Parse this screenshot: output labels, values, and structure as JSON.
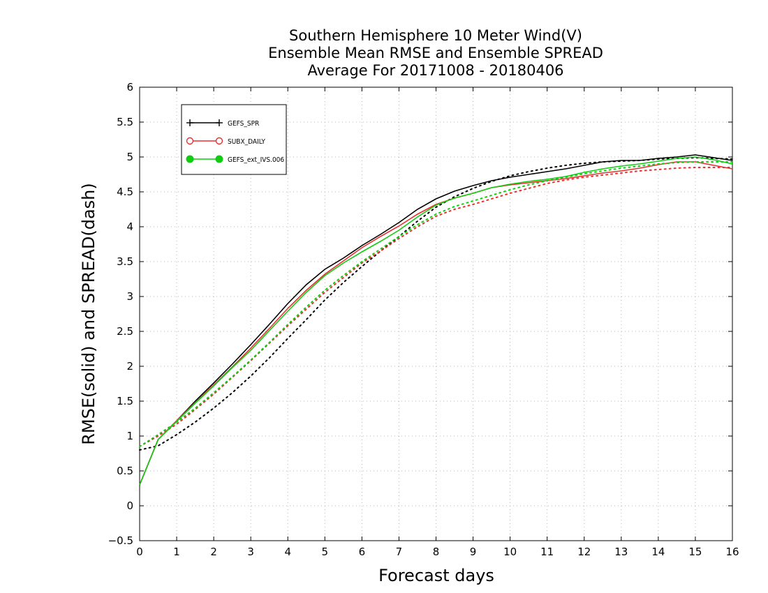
{
  "chart_data": {
    "type": "line",
    "title": [
      "Southern Hemisphere 10 Meter Wind(V)",
      "Ensemble Mean RMSE and Ensemble SPREAD",
      "Average For 20171008 - 20180406"
    ],
    "xlabel": "Forecast days",
    "ylabel": "RMSE(solid) and SPREAD(dash)",
    "xlim": [
      0,
      16
    ],
    "ylim": [
      -0.5,
      6
    ],
    "xticks": [
      0,
      1,
      2,
      3,
      4,
      5,
      6,
      7,
      8,
      9,
      10,
      11,
      12,
      13,
      14,
      15,
      16
    ],
    "yticks": [
      -0.5,
      0,
      0.5,
      1,
      1.5,
      2,
      2.5,
      3,
      3.5,
      4,
      4.5,
      5,
      5.5,
      6
    ],
    "ytick_labels": [
      "−0.5",
      "0",
      "0.5",
      "1",
      "1.5",
      "2",
      "2.5",
      "3",
      "3.5",
      "4",
      "4.5",
      "5",
      "5.5",
      "6"
    ],
    "grid": true,
    "legend_position": "top-left",
    "x": [
      0,
      0.5,
      1,
      1.5,
      2,
      2.5,
      3,
      3.5,
      4,
      4.5,
      5,
      5.5,
      6,
      6.5,
      7,
      7.5,
      8,
      8.5,
      9,
      9.5,
      10,
      10.5,
      11,
      11.5,
      12,
      12.5,
      13,
      13.5,
      14,
      14.5,
      15,
      15.5,
      16
    ],
    "series": [
      {
        "name": "GEFS_SPR",
        "color": "#000000",
        "marker": "plus",
        "rmse": [
          0.3,
          0.95,
          1.22,
          1.5,
          1.76,
          2.03,
          2.31,
          2.6,
          2.9,
          3.17,
          3.39,
          3.55,
          3.73,
          3.89,
          4.06,
          4.25,
          4.4,
          4.51,
          4.59,
          4.66,
          4.71,
          4.75,
          4.79,
          4.83,
          4.88,
          4.93,
          4.95,
          4.95,
          4.98,
          5.0,
          5.03,
          4.99,
          4.95
        ],
        "spread": [
          0.8,
          0.86,
          1.02,
          1.2,
          1.4,
          1.62,
          1.86,
          2.12,
          2.4,
          2.67,
          2.95,
          3.2,
          3.43,
          3.65,
          3.86,
          4.08,
          4.28,
          4.43,
          4.55,
          4.65,
          4.73,
          4.79,
          4.84,
          4.88,
          4.91,
          4.93,
          4.94,
          4.95,
          4.97,
          4.98,
          4.99,
          4.98,
          4.97
        ]
      },
      {
        "name": "SUBX_DAILY",
        "color": "#e83030",
        "marker": "open-circle",
        "rmse": [
          0.3,
          0.95,
          1.22,
          1.48,
          1.73,
          1.99,
          2.26,
          2.54,
          2.83,
          3.09,
          3.32,
          3.51,
          3.7,
          3.86,
          4.01,
          4.18,
          4.32,
          4.41,
          4.48,
          4.56,
          4.6,
          4.63,
          4.66,
          4.69,
          4.73,
          4.77,
          4.8,
          4.84,
          4.89,
          4.93,
          4.93,
          4.88,
          4.83
        ],
        "spread": [
          0.85,
          1.0,
          1.17,
          1.38,
          1.6,
          1.84,
          2.08,
          2.33,
          2.58,
          2.82,
          3.06,
          3.27,
          3.48,
          3.65,
          3.83,
          4.0,
          4.15,
          4.25,
          4.32,
          4.4,
          4.48,
          4.55,
          4.62,
          4.67,
          4.71,
          4.74,
          4.77,
          4.8,
          4.82,
          4.84,
          4.85,
          4.85,
          4.85
        ]
      },
      {
        "name": "GEFS_ext_IVS.006",
        "color": "#11cc11",
        "marker": "filled-circle",
        "rmse": [
          0.3,
          0.95,
          1.21,
          1.47,
          1.72,
          1.98,
          2.23,
          2.51,
          2.79,
          3.06,
          3.3,
          3.48,
          3.64,
          3.79,
          3.95,
          4.14,
          4.31,
          4.41,
          4.48,
          4.56,
          4.61,
          4.65,
          4.68,
          4.72,
          4.78,
          4.83,
          4.87,
          4.9,
          4.94,
          4.98,
          5.0,
          4.96,
          4.9
        ],
        "spread": [
          0.85,
          1.02,
          1.2,
          1.4,
          1.62,
          1.85,
          2.09,
          2.34,
          2.6,
          2.85,
          3.09,
          3.3,
          3.5,
          3.68,
          3.86,
          4.03,
          4.18,
          4.29,
          4.37,
          4.45,
          4.53,
          4.6,
          4.66,
          4.71,
          4.76,
          4.8,
          4.84,
          4.87,
          4.9,
          4.92,
          4.93,
          4.93,
          4.93
        ]
      }
    ]
  }
}
